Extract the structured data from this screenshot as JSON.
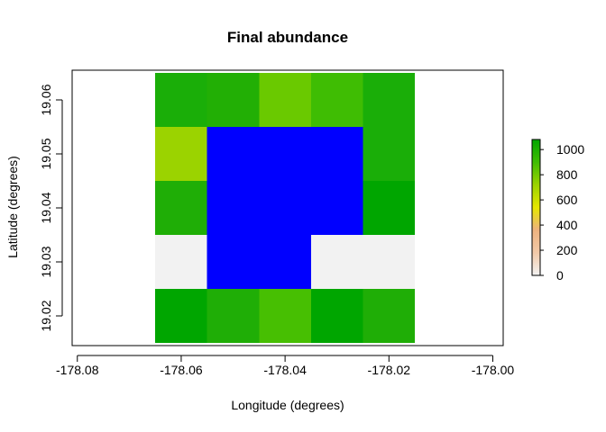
{
  "chart_data": {
    "type": "heatmap",
    "title": "Final abundance",
    "xlabel": "Longitude (degrees)",
    "ylabel": "Latitude (degrees)",
    "xlim": [
      -178.081,
      -177.998
    ],
    "ylim": [
      19.0145,
      19.0655
    ],
    "x_ticks": [
      "-178.08",
      "-178.06",
      "-178.04",
      "-178.02",
      "-178.00"
    ],
    "x_tick_values": [
      -178.08,
      -178.06,
      -178.04,
      -178.02,
      -178.0
    ],
    "y_ticks": [
      "19.02",
      "19.03",
      "19.04",
      "19.05",
      "19.06"
    ],
    "y_tick_values": [
      19.02,
      19.03,
      19.04,
      19.05,
      19.06
    ],
    "x_centers": [
      -178.06,
      -178.05,
      -178.04,
      -178.03,
      -178.02
    ],
    "y_centers": [
      19.06,
      19.05,
      19.04,
      19.03,
      19.02
    ],
    "cell_size": 0.01,
    "values": [
      [
        1000,
        1000,
        750,
        900,
        1000
      ],
      [
        650,
        null,
        null,
        null,
        1000
      ],
      [
        1000,
        null,
        null,
        null,
        1050
      ],
      [
        0,
        null,
        null,
        0,
        0
      ],
      [
        1050,
        1000,
        900,
        1050,
        1000
      ]
    ],
    "fill_colors": [
      [
        "#1aae08",
        "#22af05",
        "#6ac900",
        "#3fbd03",
        "#1aae08"
      ],
      [
        "#9bd300",
        "#0000ff",
        "#0000ff",
        "#0000ff",
        "#1aae08"
      ],
      [
        "#1fae06",
        "#0000ff",
        "#0000ff",
        "#0000ff",
        "#00a600"
      ],
      [
        "#f2f2f2",
        "#0000ff",
        "#0000ff",
        "#f2f2f2",
        "#f2f2f2"
      ],
      [
        "#00a600",
        "#1fae06",
        "#47bf02",
        "#00a600",
        "#1fae06"
      ]
    ],
    "masked_color": "#0000ff",
    "legend": {
      "position": "right",
      "ticks": [
        "0",
        "200",
        "400",
        "600",
        "800",
        "1000"
      ],
      "tick_values": [
        0,
        200,
        400,
        600,
        800,
        1000
      ],
      "range": [
        0,
        1080
      ],
      "colors": [
        "#f2f2f2",
        "#f2c9a8",
        "#edb27f",
        "#e6e600",
        "#9bd300",
        "#3fbd03",
        "#00a600"
      ]
    },
    "grid": false
  }
}
